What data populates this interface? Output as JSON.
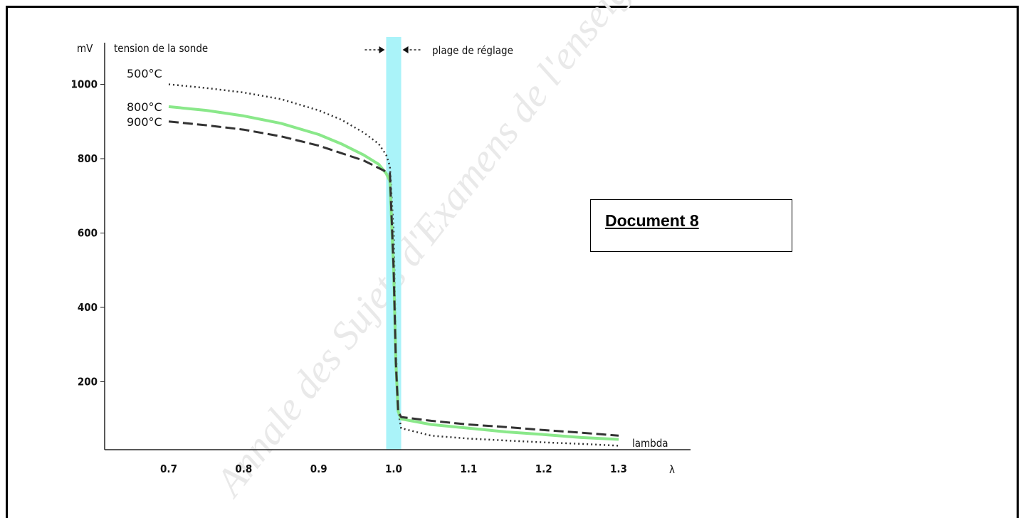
{
  "document": {
    "title": "Document 8"
  },
  "watermark": "Annale des Sujets d'Examens de l'enseignement",
  "chart_data": {
    "type": "line",
    "title": "",
    "ylabel_unit": "mV",
    "ylabel": "tension de la sonde",
    "xlabel": "lambda",
    "xsymbol": "λ",
    "xlim": [
      0.62,
      1.38
    ],
    "ylim": [
      0,
      1100
    ],
    "xticks": [
      0.7,
      0.8,
      0.9,
      1.0,
      1.1,
      1.2,
      1.3
    ],
    "xtick_labels": [
      "0.7",
      "0.8",
      "0.9",
      "1.0",
      "1.1",
      "1.2",
      "1.3"
    ],
    "yticks": [
      200,
      400,
      600,
      800,
      1000
    ],
    "ytick_labels": [
      "200",
      "400",
      "600",
      "800",
      "1000"
    ],
    "band": {
      "label": "plage de réglage",
      "x": [
        0.99,
        1.01
      ],
      "color": "#aaf3f9"
    },
    "series": [
      {
        "name": "500°C",
        "style": "dotted",
        "color": "#333333",
        "x": [
          0.7,
          0.75,
          0.8,
          0.85,
          0.9,
          0.93,
          0.96,
          0.98,
          0.99,
          0.995,
          1.0,
          1.003,
          1.006,
          1.01,
          1.05,
          1.1,
          1.15,
          1.2,
          1.25,
          1.3
        ],
        "y": [
          1000,
          990,
          978,
          960,
          930,
          905,
          870,
          840,
          810,
          780,
          600,
          300,
          120,
          75,
          55,
          47,
          42,
          37,
          33,
          28
        ]
      },
      {
        "name": "800°C",
        "style": "solid",
        "color": "#8ae88a",
        "x": [
          0.7,
          0.75,
          0.8,
          0.85,
          0.9,
          0.93,
          0.96,
          0.98,
          0.99,
          0.995,
          1.0,
          1.003,
          1.006,
          1.01,
          1.05,
          1.1,
          1.15,
          1.2,
          1.25,
          1.3
        ],
        "y": [
          940,
          930,
          915,
          895,
          865,
          840,
          810,
          785,
          760,
          740,
          500,
          250,
          120,
          100,
          85,
          75,
          65,
          58,
          50,
          45
        ]
      },
      {
        "name": "900°C",
        "style": "dashed",
        "color": "#333333",
        "x": [
          0.7,
          0.75,
          0.8,
          0.85,
          0.9,
          0.93,
          0.96,
          0.98,
          0.99,
          0.995,
          1.0,
          1.003,
          1.006,
          1.01,
          1.05,
          1.1,
          1.15,
          1.2,
          1.25,
          1.3
        ],
        "y": [
          900,
          890,
          878,
          860,
          835,
          815,
          795,
          775,
          765,
          760,
          500,
          250,
          120,
          105,
          95,
          85,
          78,
          70,
          63,
          55
        ]
      }
    ]
  }
}
